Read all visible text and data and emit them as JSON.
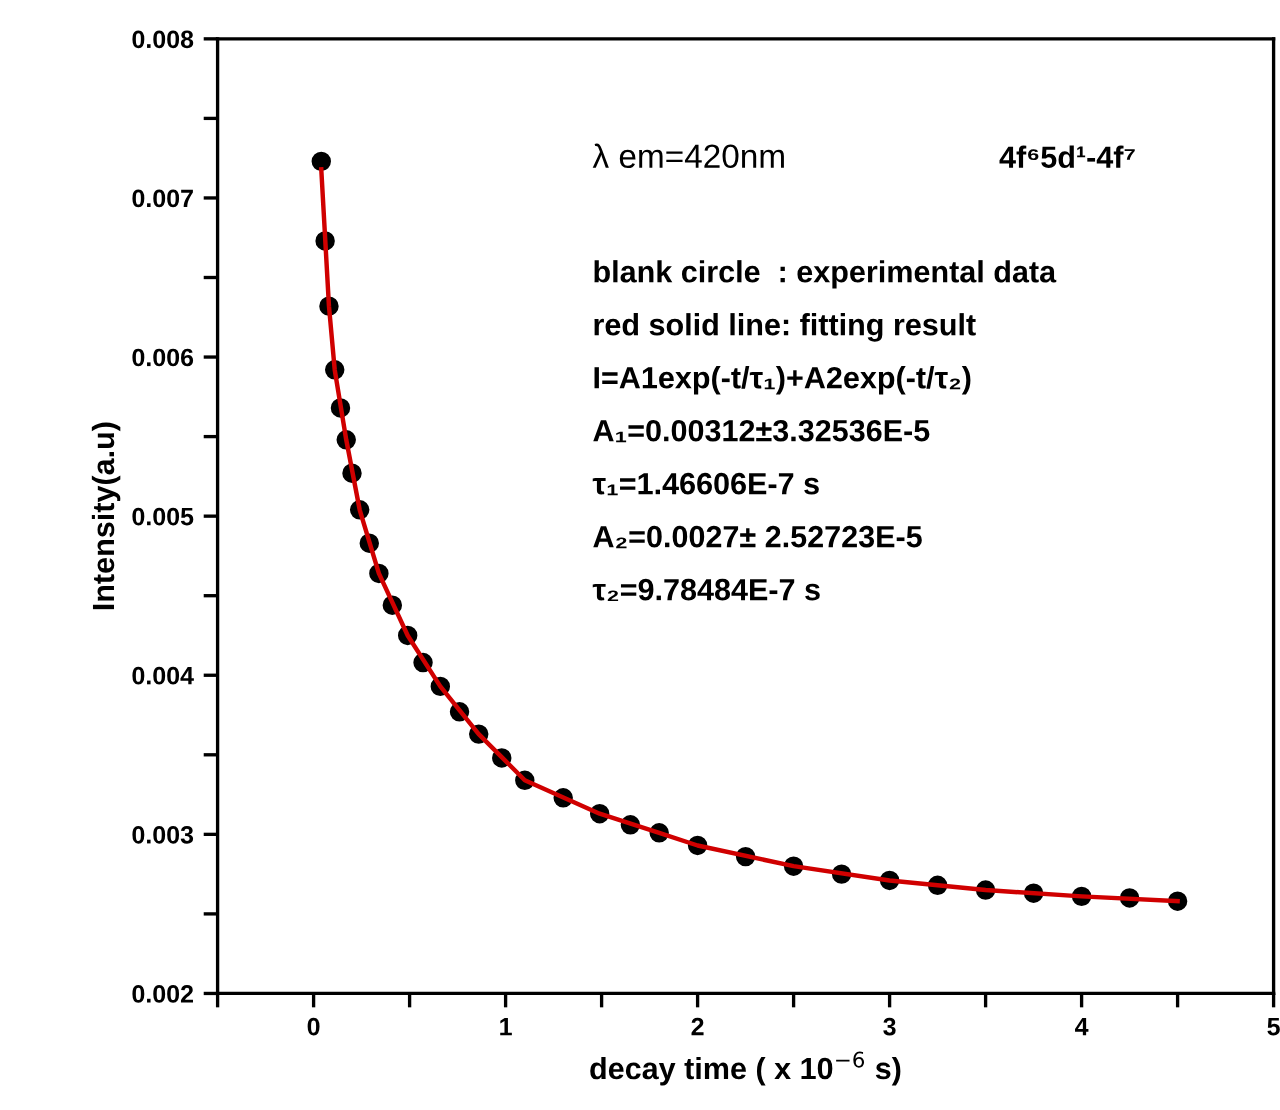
{
  "chart_data": {
    "type": "scatter",
    "xlabel": "decay time ( x 10$^{−6}$ s)",
    "ylabel": "Intensity(a.u)",
    "xlim": [
      -0.5,
      5
    ],
    "ylim": [
      0.002,
      0.008
    ],
    "xticks": [
      {
        "value": -0.5,
        "label": null
      },
      0,
      {
        "value": 0.5,
        "label": null
      },
      1,
      {
        "value": 1.5,
        "label": null
      },
      2,
      {
        "value": 2.5,
        "label": null
      },
      3,
      {
        "value": 3.5,
        "label": null
      },
      4,
      {
        "value": 4.5,
        "label": null
      },
      5
    ],
    "yticks": [
      0.002,
      {
        "value": 0.0025,
        "label": null
      },
      0.003,
      {
        "value": 0.0035,
        "label": null
      },
      0.004,
      {
        "value": 0.0045,
        "label": null
      },
      0.005,
      {
        "value": 0.0055,
        "label": null
      },
      0.006,
      {
        "value": 0.0065,
        "label": null
      },
      0.007,
      {
        "value": 0.0075,
        "label": null
      },
      0.008
    ],
    "grid": false,
    "legend": false,
    "series": [
      {
        "marker": "circle",
        "color": "#000000",
        "x": [
          0.04,
          0.06,
          0.08,
          0.11,
          0.14,
          0.17,
          0.2,
          0.24,
          0.29,
          0.34,
          0.41,
          0.49,
          0.57,
          0.66,
          0.76,
          0.86,
          0.98,
          1.1,
          1.3,
          1.49,
          1.65,
          1.8,
          2.0,
          2.25,
          2.5,
          2.75,
          3.0,
          3.25,
          3.5,
          3.75,
          4.0,
          4.25,
          4.5
        ],
        "values": [
          0.00723,
          0.00673,
          0.00632,
          0.00592,
          0.00568,
          0.00548,
          0.00527,
          0.00504,
          0.00483,
          0.00464,
          0.00444,
          0.00425,
          0.00408,
          0.00393,
          0.00377,
          0.00363,
          0.00348,
          0.00334,
          0.00323,
          0.00313,
          0.00306,
          0.00301,
          0.00293,
          0.00286,
          0.0028,
          0.00275,
          0.00271,
          0.00268,
          0.00265,
          0.00263,
          0.00261,
          0.0026,
          0.00258
        ]
      },
      {
        "type": "line",
        "marker": "none",
        "color": "#d00000",
        "line_style": "solid",
        "x": [
          0.04,
          0.08,
          0.11,
          0.17,
          0.24,
          0.34,
          0.49,
          0.66,
          0.86,
          1.1,
          1.49,
          1.8,
          2.0,
          2.5,
          3.0,
          3.5,
          4.0,
          4.5
        ],
        "values": [
          0.00718,
          0.00632,
          0.00592,
          0.00548,
          0.00504,
          0.00464,
          0.00425,
          0.00393,
          0.00363,
          0.00334,
          0.00313,
          0.00301,
          0.00293,
          0.0028,
          0.00271,
          0.00265,
          0.00261,
          0.00258
        ]
      }
    ],
    "annotations": [
      "λ em=420nm",
      "4f⁶5d¹-4f⁷",
      "blank circle  : experimental data",
      "red solid line: fitting result",
      "I=A1exp(-t/τ₁)+A2exp(-t/τ₂)",
      "A₁=0.00312±3.32536E-5",
      "τ₁=1.46606E-7 s",
      "A₂=0.0027± 2.52723E-5",
      "τ₂=9.78484E-7 s"
    ]
  }
}
